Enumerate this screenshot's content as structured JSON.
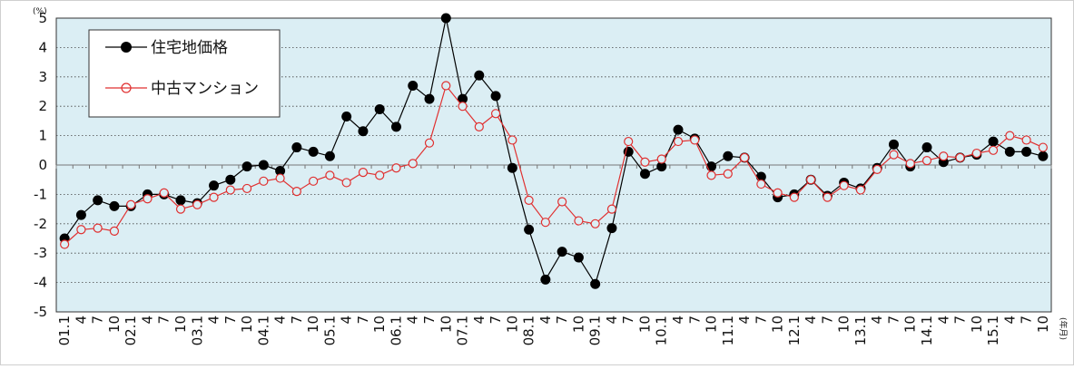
{
  "chart_data": {
    "type": "line",
    "y_unit_label": "(%)",
    "x_unit_label": "(年月)",
    "ylim": [
      -5,
      5
    ],
    "yticks": [
      "5",
      "4",
      "3",
      "2",
      "1",
      "0",
      "-1",
      "-2",
      "-3",
      "-4",
      "-5"
    ],
    "grid": true,
    "legend_position": "top-left",
    "plot_background": "#dbeef4",
    "x_labels": [
      "01.1",
      "4",
      "7",
      "10",
      "02.1",
      "4",
      "7",
      "10",
      "03.1",
      "4",
      "7",
      "10",
      "04.1",
      "4",
      "7",
      "10",
      "05.1",
      "4",
      "7",
      "10",
      "06.1",
      "4",
      "7",
      "10",
      "07.1",
      "4",
      "7",
      "10",
      "08.1",
      "4",
      "7",
      "10",
      "09.1",
      "4",
      "7",
      "10",
      "10.1",
      "4",
      "7",
      "10",
      "11.1",
      "4",
      "7",
      "10",
      "12.1",
      "4",
      "7",
      "10",
      "13.1",
      "4",
      "7",
      "10",
      "14.1",
      "4",
      "7",
      "10",
      "15.1",
      "4",
      "7",
      "10"
    ],
    "series": [
      {
        "name": "住宅地価格",
        "color": "#000000",
        "marker": "filled-circle",
        "values": [
          -2.5,
          -1.7,
          -1.2,
          -1.4,
          -1.4,
          -1.0,
          -1.0,
          -1.2,
          -1.3,
          -0.7,
          -0.5,
          -0.05,
          0.0,
          -0.2,
          0.6,
          0.45,
          0.3,
          1.65,
          1.15,
          1.9,
          1.3,
          2.7,
          2.25,
          5.0,
          2.25,
          3.05,
          2.35,
          -0.1,
          -2.2,
          -3.9,
          -2.95,
          -3.15,
          -4.05,
          -2.15,
          0.45,
          -0.3,
          -0.05,
          1.2,
          0.9,
          -0.05,
          0.3,
          0.25,
          -0.4,
          -1.1,
          -1.0,
          -0.5,
          -1.05,
          -0.6,
          -0.8,
          -0.1,
          0.7,
          -0.05,
          0.6,
          0.1,
          0.25,
          0.35,
          0.8,
          0.45,
          0.45,
          0.3
        ]
      },
      {
        "name": "中古マンション",
        "color": "#e03030",
        "marker": "open-circle",
        "values": [
          -2.7,
          -2.2,
          -2.15,
          -2.25,
          -1.35,
          -1.15,
          -0.95,
          -1.5,
          -1.35,
          -1.1,
          -0.85,
          -0.8,
          -0.55,
          -0.45,
          -0.9,
          -0.55,
          -0.35,
          -0.6,
          -0.25,
          -0.35,
          -0.1,
          0.05,
          0.75,
          2.7,
          2.0,
          1.3,
          1.75,
          0.85,
          -1.2,
          -1.95,
          -1.25,
          -1.9,
          -2.0,
          -1.5,
          0.8,
          0.1,
          0.2,
          0.8,
          0.85,
          -0.35,
          -0.3,
          0.25,
          -0.65,
          -0.95,
          -1.1,
          -0.5,
          -1.1,
          -0.7,
          -0.85,
          -0.15,
          0.35,
          0.05,
          0.15,
          0.3,
          0.25,
          0.4,
          0.5,
          1.0,
          0.85,
          0.6
        ]
      }
    ]
  }
}
